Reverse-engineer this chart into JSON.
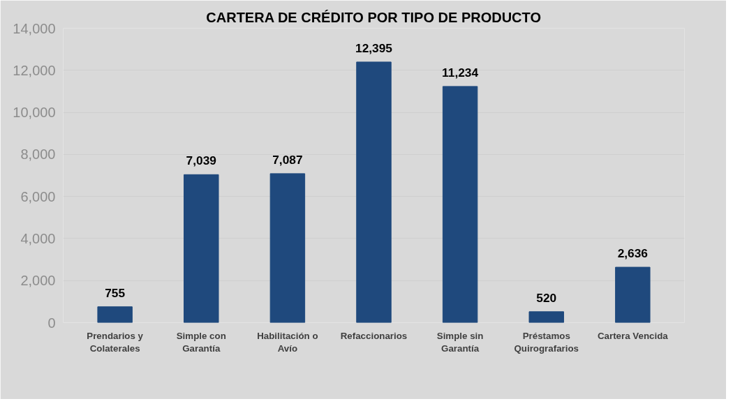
{
  "chart_data": {
    "type": "bar",
    "title": "CARTERA DE CRÉDITO POR TIPO DE PRODUCTO",
    "categories": [
      "Prendarios y Colaterales",
      "Simple con Garantía",
      "Habilitación o Avío",
      "Refaccionarios",
      "Simple sin Garantía",
      "Préstamos Quirografarios",
      "Cartera Vencida"
    ],
    "values": [
      755,
      7039,
      7087,
      12395,
      11234,
      520,
      2636
    ],
    "color": "#1f497d",
    "value_labels": [
      "755",
      "7,039",
      "7,087",
      "12,395",
      "11,234",
      "520",
      "2,636"
    ],
    "ylim": [
      0,
      14000
    ],
    "yticks": [
      {
        "value": 0,
        "label": "0"
      },
      {
        "value": 2000,
        "label": "2,000"
      },
      {
        "value": 4000,
        "label": "4,000"
      },
      {
        "value": 6000,
        "label": "6,000"
      },
      {
        "value": 8000,
        "label": "8,000"
      },
      {
        "value": 10000,
        "label": "10,000"
      },
      {
        "value": 12000,
        "label": "12,000"
      },
      {
        "value": 14000,
        "label": "14,000"
      }
    ],
    "grid": "y"
  }
}
